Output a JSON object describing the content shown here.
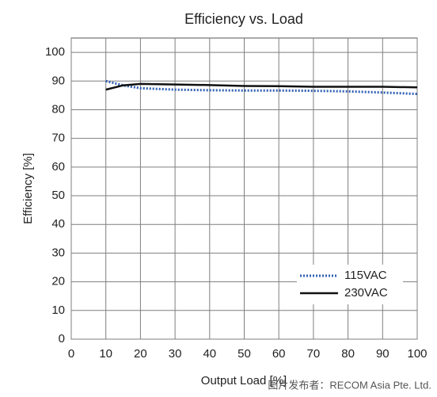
{
  "chart_data": {
    "type": "line",
    "title": "Efficiency vs. Load",
    "x_label": "Output Load [%]",
    "y_label": "Efficiency [%]",
    "x": [
      10,
      15,
      20,
      30,
      40,
      50,
      60,
      70,
      80,
      90,
      100
    ],
    "series": [
      {
        "name": "115VAC",
        "color": "#2f5fb3",
        "style": "dotted",
        "values": [
          90,
          88.5,
          87.5,
          87,
          86.8,
          86.7,
          86.7,
          86.6,
          86.4,
          86,
          85.5
        ]
      },
      {
        "name": "230VAC",
        "color": "#111111",
        "style": "solid",
        "values": [
          87,
          88.5,
          89,
          88.8,
          88.6,
          88.3,
          88.2,
          88,
          88,
          88,
          87.8
        ]
      }
    ],
    "xlim": [
      0,
      100
    ],
    "xticks": [
      0,
      10,
      20,
      30,
      40,
      50,
      60,
      70,
      80,
      90,
      100
    ],
    "ylim": [
      0,
      105
    ],
    "yticks": [
      0,
      10,
      20,
      30,
      40,
      50,
      60,
      70,
      80,
      90,
      100
    ],
    "grid": true,
    "legend": "lower right"
  },
  "watermark": "图片发布者：RECOM Asia Pte. Ltd."
}
